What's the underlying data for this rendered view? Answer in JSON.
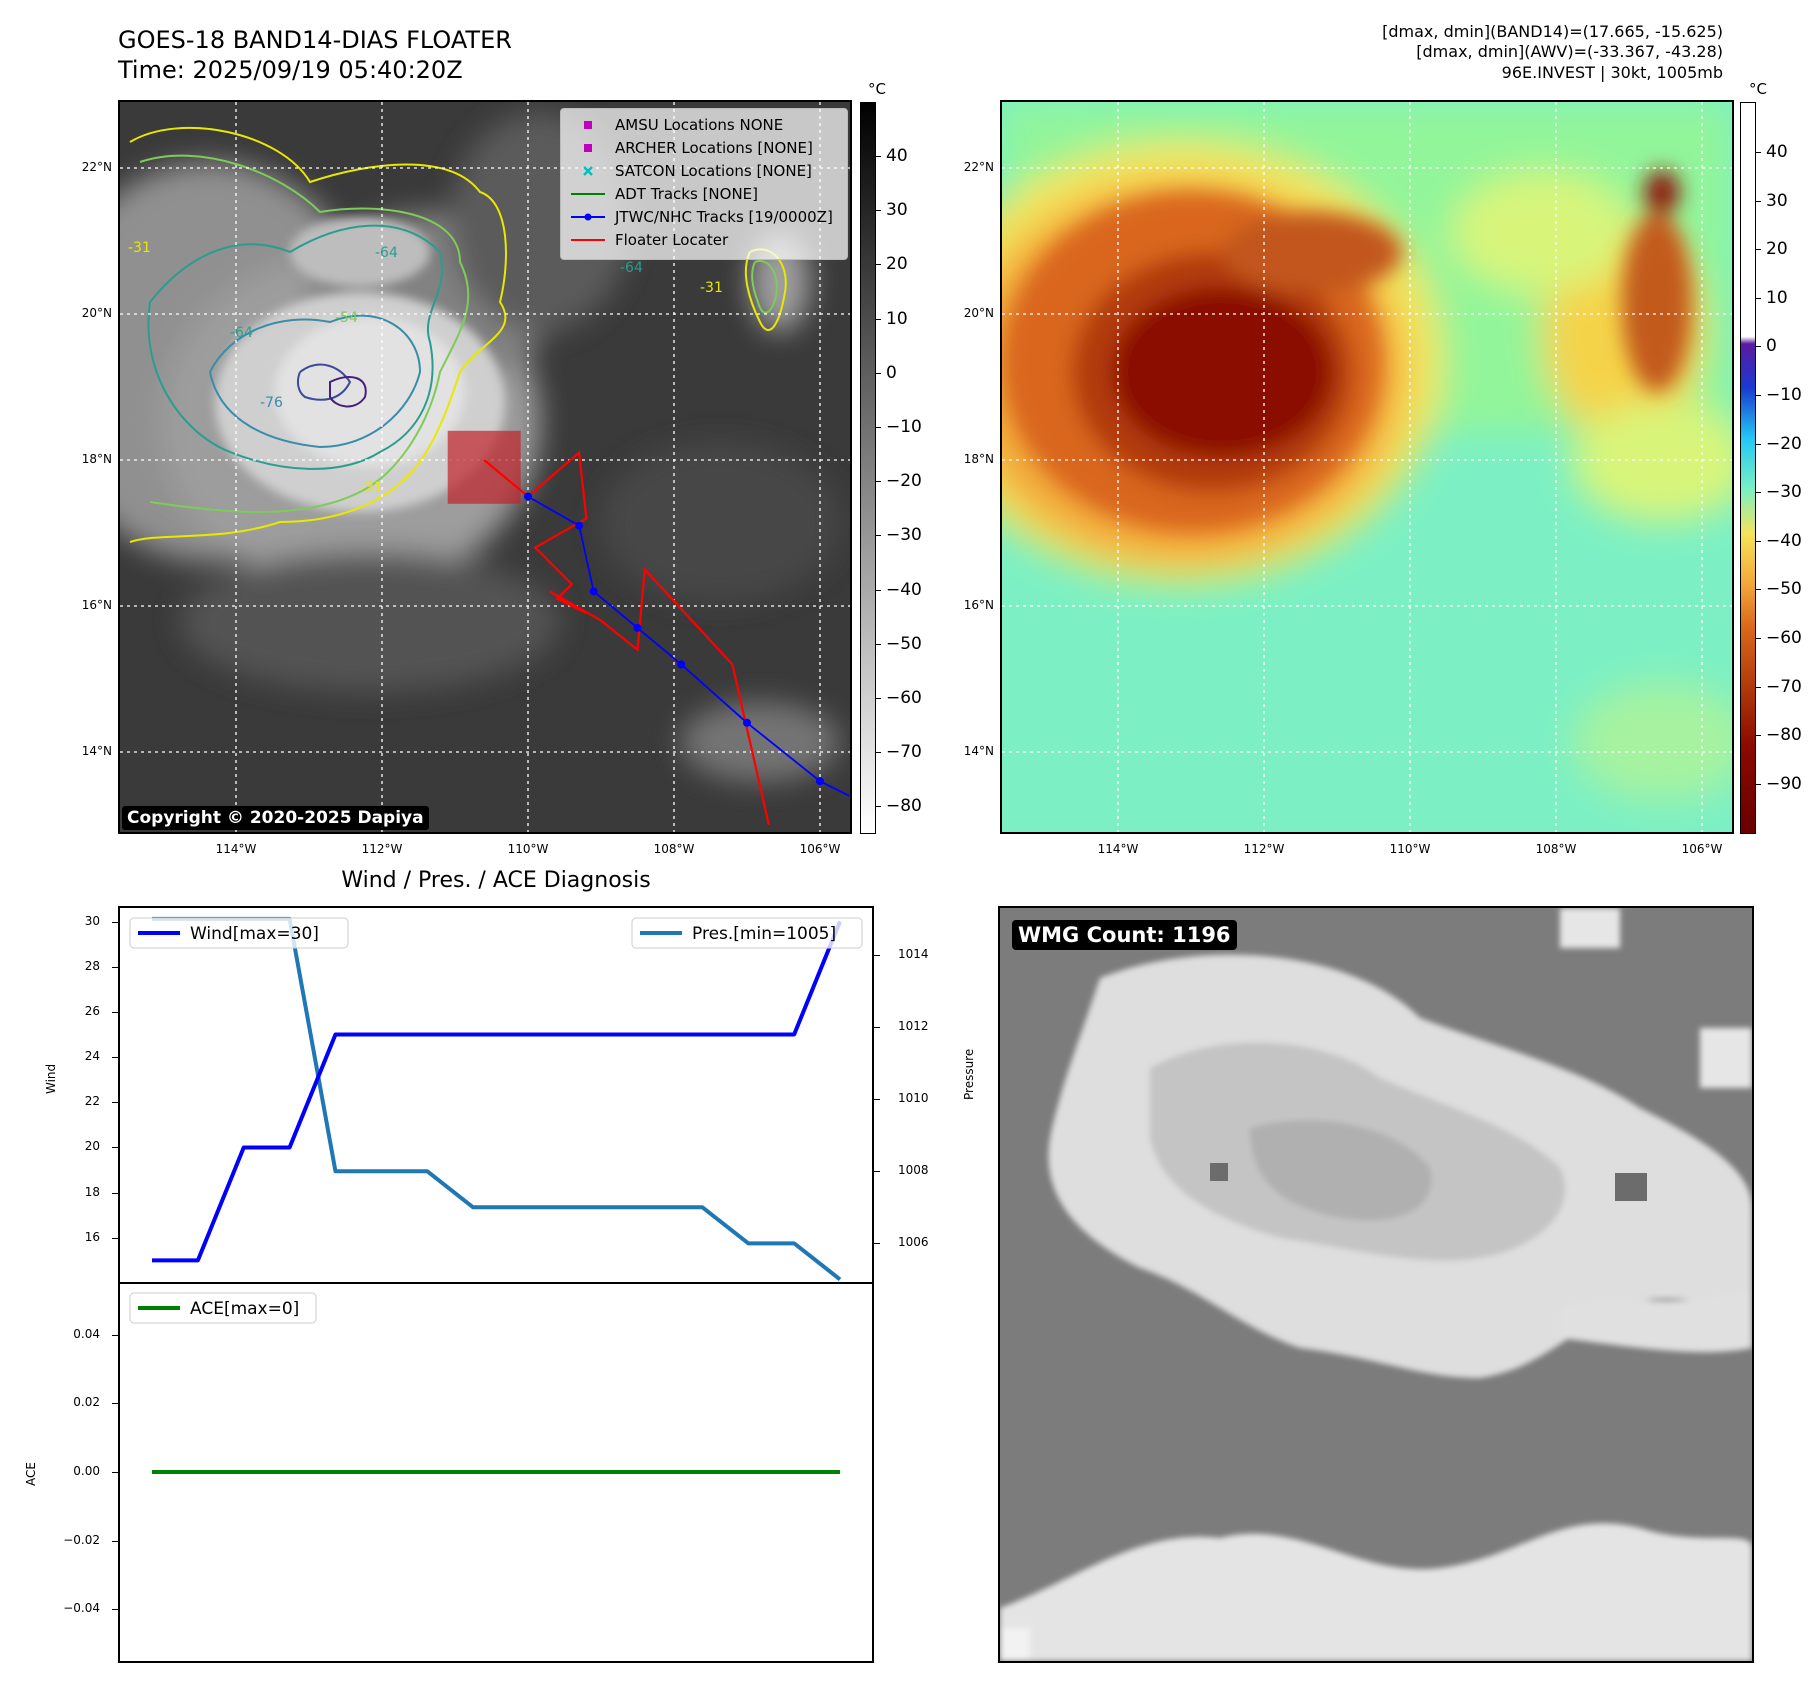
{
  "header": {
    "title_line1": "GOES-18 BAND14-DIAS FLOATER",
    "title_line2": "Time: 2025/09/19 05:40:20Z",
    "right_line1": "[dmax, dmin](BAND14)=(17.665, -15.625)",
    "right_line2": "[dmax, dmin](AWV)=(-33.367, -43.28)",
    "right_line3": "96E.INVEST | 30kt, 1005mb"
  },
  "map_left": {
    "lat_labels": [
      "22°N",
      "20°N",
      "18°N",
      "16°N",
      "14°N"
    ],
    "lon_labels": [
      "114°W",
      "112°W",
      "110°W",
      "108°W",
      "106°W"
    ],
    "copyright": "Copyright © 2020-2025 Dapiya",
    "contour_labels": [
      "-31",
      "-64",
      "-64",
      "-76",
      "-54",
      "-31",
      "-64",
      "-31"
    ],
    "legend": [
      {
        "label": "AMSU Locations NONE",
        "color": "#c000c0",
        "marker": "square"
      },
      {
        "label": "ARCHER Locations [NONE]",
        "color": "#c000c0",
        "marker": "square"
      },
      {
        "label": "SATCON Locations [NONE]",
        "color": "#00c0c0",
        "marker": "x"
      },
      {
        "label": "ADT Tracks [NONE]",
        "color": "#008000",
        "marker": "line"
      },
      {
        "label": "JTWC/NHC Tracks [19/0000Z]",
        "color": "#0000ff",
        "marker": "line-dot"
      },
      {
        "label": "Floater Locater",
        "color": "#ff0000",
        "marker": "line"
      }
    ]
  },
  "colorbar_left": {
    "unit": "°C",
    "ticks": [
      "40",
      "30",
      "20",
      "10",
      "0",
      "−10",
      "−20",
      "−30",
      "−40",
      "−50",
      "−60",
      "−70",
      "−80"
    ]
  },
  "map_right": {
    "lat_labels": [
      "22°N",
      "20°N",
      "18°N",
      "16°N",
      "14°N"
    ],
    "lon_labels": [
      "114°W",
      "112°W",
      "110°W",
      "108°W",
      "106°W"
    ]
  },
  "colorbar_right": {
    "unit": "°C",
    "ticks": [
      "40",
      "30",
      "20",
      "10",
      "0",
      "−10",
      "−20",
      "−30",
      "−40",
      "−50",
      "−60",
      "−70",
      "−80",
      "−90"
    ]
  },
  "tracks": {
    "jtwc_nhc": [
      [
        -110.0,
        17.5
      ],
      [
        -109.3,
        17.1
      ],
      [
        -109.1,
        16.2
      ],
      [
        -108.5,
        15.7
      ],
      [
        -107.9,
        15.2
      ],
      [
        -107.0,
        14.4
      ],
      [
        -106.0,
        13.6
      ],
      [
        -105.6,
        13.4
      ]
    ],
    "floater_locater": [
      [
        -110.6,
        18.0
      ],
      [
        -110.0,
        17.5
      ],
      [
        -109.3,
        18.1
      ],
      [
        -109.2,
        17.2
      ],
      [
        -109.9,
        16.8
      ],
      [
        -109.4,
        16.3
      ],
      [
        -109.6,
        16.1
      ],
      [
        -109.2,
        15.9
      ],
      [
        -109.7,
        16.2
      ],
      [
        -109.0,
        15.8
      ],
      [
        -108.5,
        15.4
      ],
      [
        -108.4,
        16.5
      ],
      [
        -107.2,
        15.2
      ],
      [
        -106.7,
        13.0
      ]
    ],
    "floater_box": {
      "lon": [
        -111.1,
        -110.1
      ],
      "lat": [
        17.4,
        18.4
      ]
    }
  },
  "chart_data": [
    {
      "type": "line",
      "title": "Wind / Pres. / ACE Diagnosis",
      "ylabel": "Wind",
      "y2label": "Pressure",
      "ylim": [
        14.0,
        30.6
      ],
      "y2lim": [
        1004.9,
        1015.3
      ],
      "yticks": [
        "16",
        "18",
        "20",
        "22",
        "24",
        "26",
        "28",
        "30"
      ],
      "y2ticks": [
        "1006",
        "1008",
        "1010",
        "1012",
        "1014"
      ],
      "x": [
        0,
        1,
        2,
        3,
        4,
        5,
        6,
        7,
        8,
        9,
        10,
        11,
        12,
        13,
        14,
        15
      ],
      "series": [
        {
          "name": "Wind[max=30]",
          "color": "#0000ff",
          "axis": "left",
          "values": [
            15,
            15,
            20,
            20,
            25,
            25,
            25,
            25,
            25,
            25,
            25,
            25,
            25,
            25,
            25,
            30
          ]
        },
        {
          "name": "Pres.[min=1005]",
          "color": "#1f77b4",
          "axis": "right",
          "values": [
            1015,
            1015,
            1015,
            1015,
            1008,
            1008,
            1008,
            1007,
            1007,
            1007,
            1007,
            1007,
            1007,
            1006,
            1006,
            1005
          ]
        }
      ]
    },
    {
      "type": "line",
      "ylabel": "ACE",
      "ylim": [
        -0.055,
        0.055
      ],
      "yticks": [
        "0.04",
        "0.02",
        "0.00",
        "−0.02",
        "−0.04"
      ],
      "x": [
        0,
        1,
        2,
        3,
        4,
        5,
        6,
        7,
        8,
        9,
        10,
        11,
        12,
        13,
        14,
        15
      ],
      "series": [
        {
          "name": "ACE[max=0]",
          "color": "#008000",
          "values": [
            0,
            0,
            0,
            0,
            0,
            0,
            0,
            0,
            0,
            0,
            0,
            0,
            0,
            0,
            0,
            0
          ]
        }
      ]
    }
  ],
  "wmg": {
    "label": "WMG Count: 1196"
  }
}
